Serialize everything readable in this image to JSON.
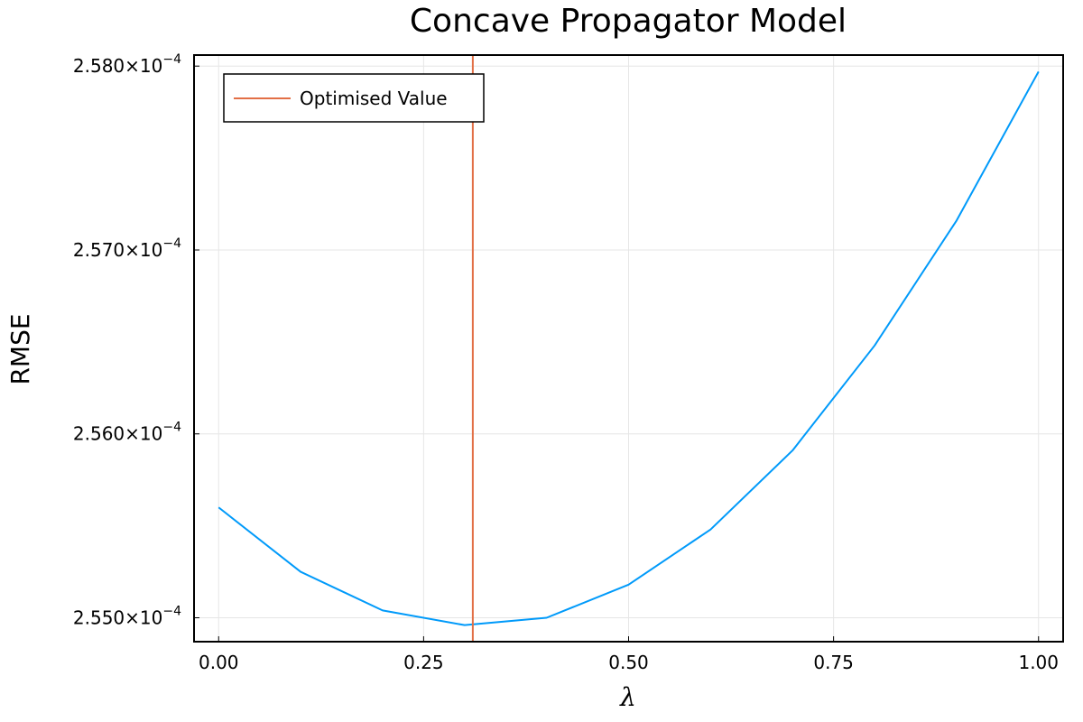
{
  "chart_data": {
    "type": "line",
    "title": "Concave Propagator Model",
    "xlabel": "λ",
    "ylabel": "RMSE",
    "xlim": [
      -0.03,
      1.03
    ],
    "ylim": [
      0.00025487,
      0.00025806
    ],
    "x_ticks": [
      {
        "value": 0.0,
        "label": "0.00"
      },
      {
        "value": 0.25,
        "label": "0.25"
      },
      {
        "value": 0.5,
        "label": "0.50"
      },
      {
        "value": 0.75,
        "label": "0.75"
      },
      {
        "value": 1.0,
        "label": "1.00"
      }
    ],
    "y_ticks": [
      {
        "value": 0.000255,
        "mantissa": "2.550",
        "exponent": "−4"
      },
      {
        "value": 0.000256,
        "mantissa": "2.560",
        "exponent": "−4"
      },
      {
        "value": 0.000257,
        "mantissa": "2.570",
        "exponent": "−4"
      },
      {
        "value": 0.000258,
        "mantissa": "2.580",
        "exponent": "−4"
      }
    ],
    "grid": true,
    "legend_position": "top-left",
    "series": [
      {
        "kind": "line",
        "color": "#009AFA",
        "x": [
          0.0,
          0.1,
          0.2,
          0.3,
          0.4,
          0.5,
          0.6,
          0.7,
          0.8,
          0.9,
          1.0
        ],
        "y": [
          0.0002556,
          0.00025525,
          0.00025504,
          0.00025496,
          0.000255,
          0.00025518,
          0.00025548,
          0.00025591,
          0.00025648,
          0.00025716,
          0.00025797
        ]
      },
      {
        "kind": "vline",
        "name": "Optimised Value",
        "color": "#E26F46",
        "x": 0.31
      }
    ]
  }
}
